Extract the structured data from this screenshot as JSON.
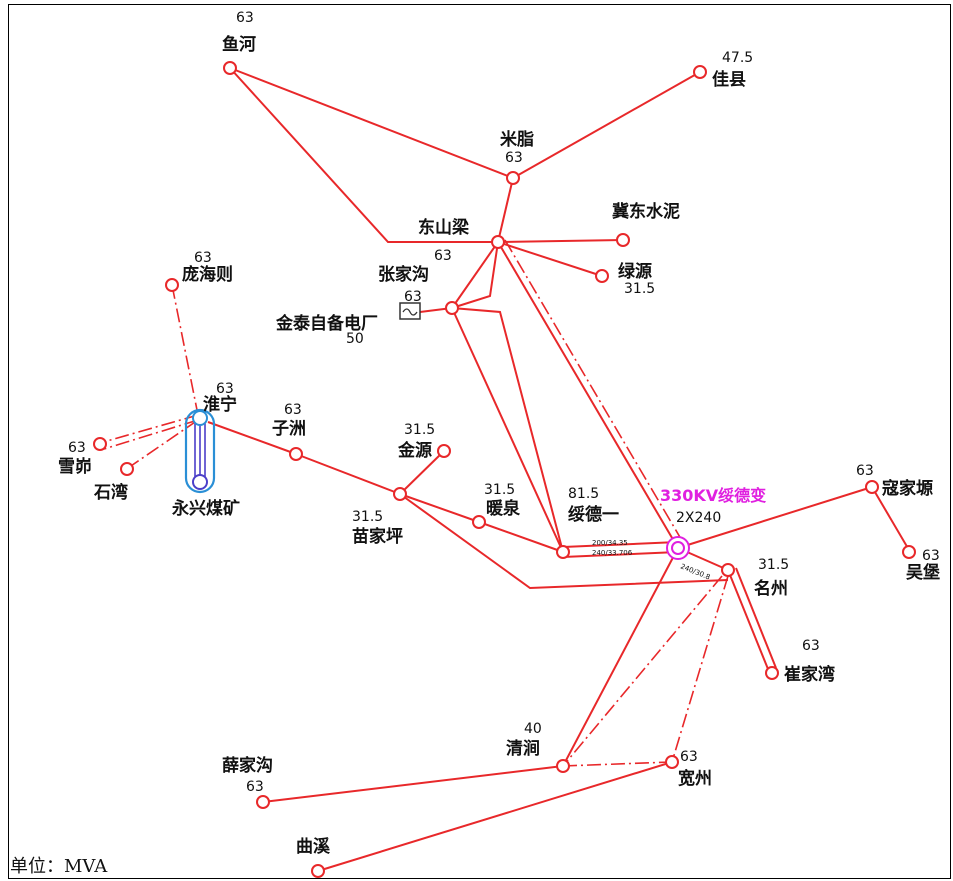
{
  "unit_label": "单位：MVA",
  "hub": {
    "name": "330KV绥德变",
    "capacity": "2X240",
    "color": "#e020e0"
  },
  "line_labels": {
    "a": "200/34.35",
    "b": "240/33.706",
    "c": "240/30.8"
  },
  "colors": {
    "line": "#e8282a",
    "mine_loop": "#2a8fd6",
    "mine_inner": "#4b3fc9"
  },
  "stations": {
    "yuhe": {
      "name": "鱼河",
      "cap": "63"
    },
    "jiaxian": {
      "name": "佳县",
      "cap": "47.5"
    },
    "mizhi": {
      "name": "米脂",
      "cap": "63"
    },
    "dongshanliang": {
      "name": "东山梁",
      "cap": "63"
    },
    "jidong": {
      "name": "冀东水泥",
      "cap": ""
    },
    "lvyuan": {
      "name": "绿源",
      "cap": "31.5"
    },
    "zhangjiagou": {
      "name": "张家沟",
      "cap": "63"
    },
    "jintai": {
      "name": "金泰自备电厂",
      "cap": "50"
    },
    "panghaize": {
      "name": "庞海则",
      "cap": "63"
    },
    "huining": {
      "name": "淮宁",
      "cap": "63"
    },
    "xuemao": {
      "name": "雪峁",
      "cap": "63"
    },
    "shiwan": {
      "name": "石湾",
      "cap": ""
    },
    "yongxing": {
      "name": "永兴煤矿",
      "cap": ""
    },
    "zizhou": {
      "name": "子洲",
      "cap": "63"
    },
    "jinyuan": {
      "name": "金源",
      "cap": "31.5"
    },
    "miaojiaping": {
      "name": "苗家坪",
      "cap": "31.5"
    },
    "nuanquan": {
      "name": "暖泉",
      "cap": "31.5"
    },
    "suideyi": {
      "name": "绥德一",
      "cap": "81.5"
    },
    "koujiayuan": {
      "name": "寇家塬",
      "cap": "63"
    },
    "wubao": {
      "name": "吴堡",
      "cap": "63"
    },
    "mingzhou": {
      "name": "名州",
      "cap": "31.5"
    },
    "cuijiawan": {
      "name": "崔家湾",
      "cap": "63"
    },
    "qingjian": {
      "name": "清涧",
      "cap": "40"
    },
    "kuanzhou": {
      "name": "宽州",
      "cap": "63"
    },
    "xuejiagou": {
      "name": "薛家沟",
      "cap": "63"
    },
    "quxi": {
      "name": "曲溪",
      "cap": ""
    }
  }
}
